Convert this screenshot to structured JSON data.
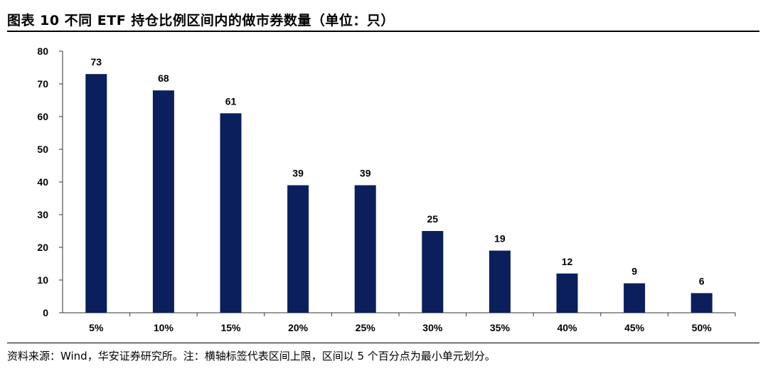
{
  "title": "图表 10 不同 ETF 持仓比例区间内的做市券数量（单位：只）",
  "source": "资料来源：Wind，华安证券研究所。注：横轴标签代表区间上限，区间以 5 个百分点为最小单元划分。",
  "chart_data": {
    "type": "bar",
    "categories": [
      "5%",
      "10%",
      "15%",
      "20%",
      "25%",
      "30%",
      "35%",
      "40%",
      "45%",
      "50%"
    ],
    "values": [
      73,
      68,
      61,
      39,
      39,
      25,
      19,
      12,
      9,
      6
    ],
    "yticks": [
      0,
      10,
      20,
      30,
      40,
      50,
      60,
      70,
      80
    ],
    "ylim": [
      0,
      80
    ],
    "bar_color": "#0b1f5c",
    "grid": false,
    "legend": "none",
    "data_labels": true
  }
}
